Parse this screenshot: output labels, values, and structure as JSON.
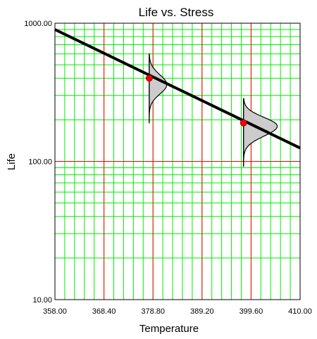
{
  "chart_data": {
    "type": "line",
    "title": "Life vs. Stress",
    "xlabel": "Temperature",
    "ylabel": "Life",
    "xlim": [
      358,
      410
    ],
    "ylim": [
      10,
      1000
    ],
    "y_scale": "log",
    "x_ticks": [
      "358.00",
      "368.40",
      "378.80",
      "389.20",
      "399.60",
      "410.00"
    ],
    "y_ticks": [
      "10.00",
      "100.00",
      "1000.00"
    ],
    "series": [
      {
        "x": [
          358,
          410
        ],
        "y": [
          900,
          125
        ]
      }
    ],
    "points": [
      {
        "x": 378.0,
        "y": 400
      },
      {
        "x": 398.0,
        "y": 190
      }
    ],
    "distributions": [
      {
        "x": 378.0,
        "y_min": 190,
        "y_max": 600,
        "peak_y": 360
      },
      {
        "x": 398.0,
        "y_min": 92,
        "y_max": 285,
        "peak_y": 180
      }
    ],
    "colors": {
      "major_grid": "#ff0000",
      "minor_grid": "#00ee00",
      "line": "#000000",
      "point": "#ff0000",
      "distribution_fill": "#cccccc"
    },
    "grid": true,
    "legend": "none"
  }
}
